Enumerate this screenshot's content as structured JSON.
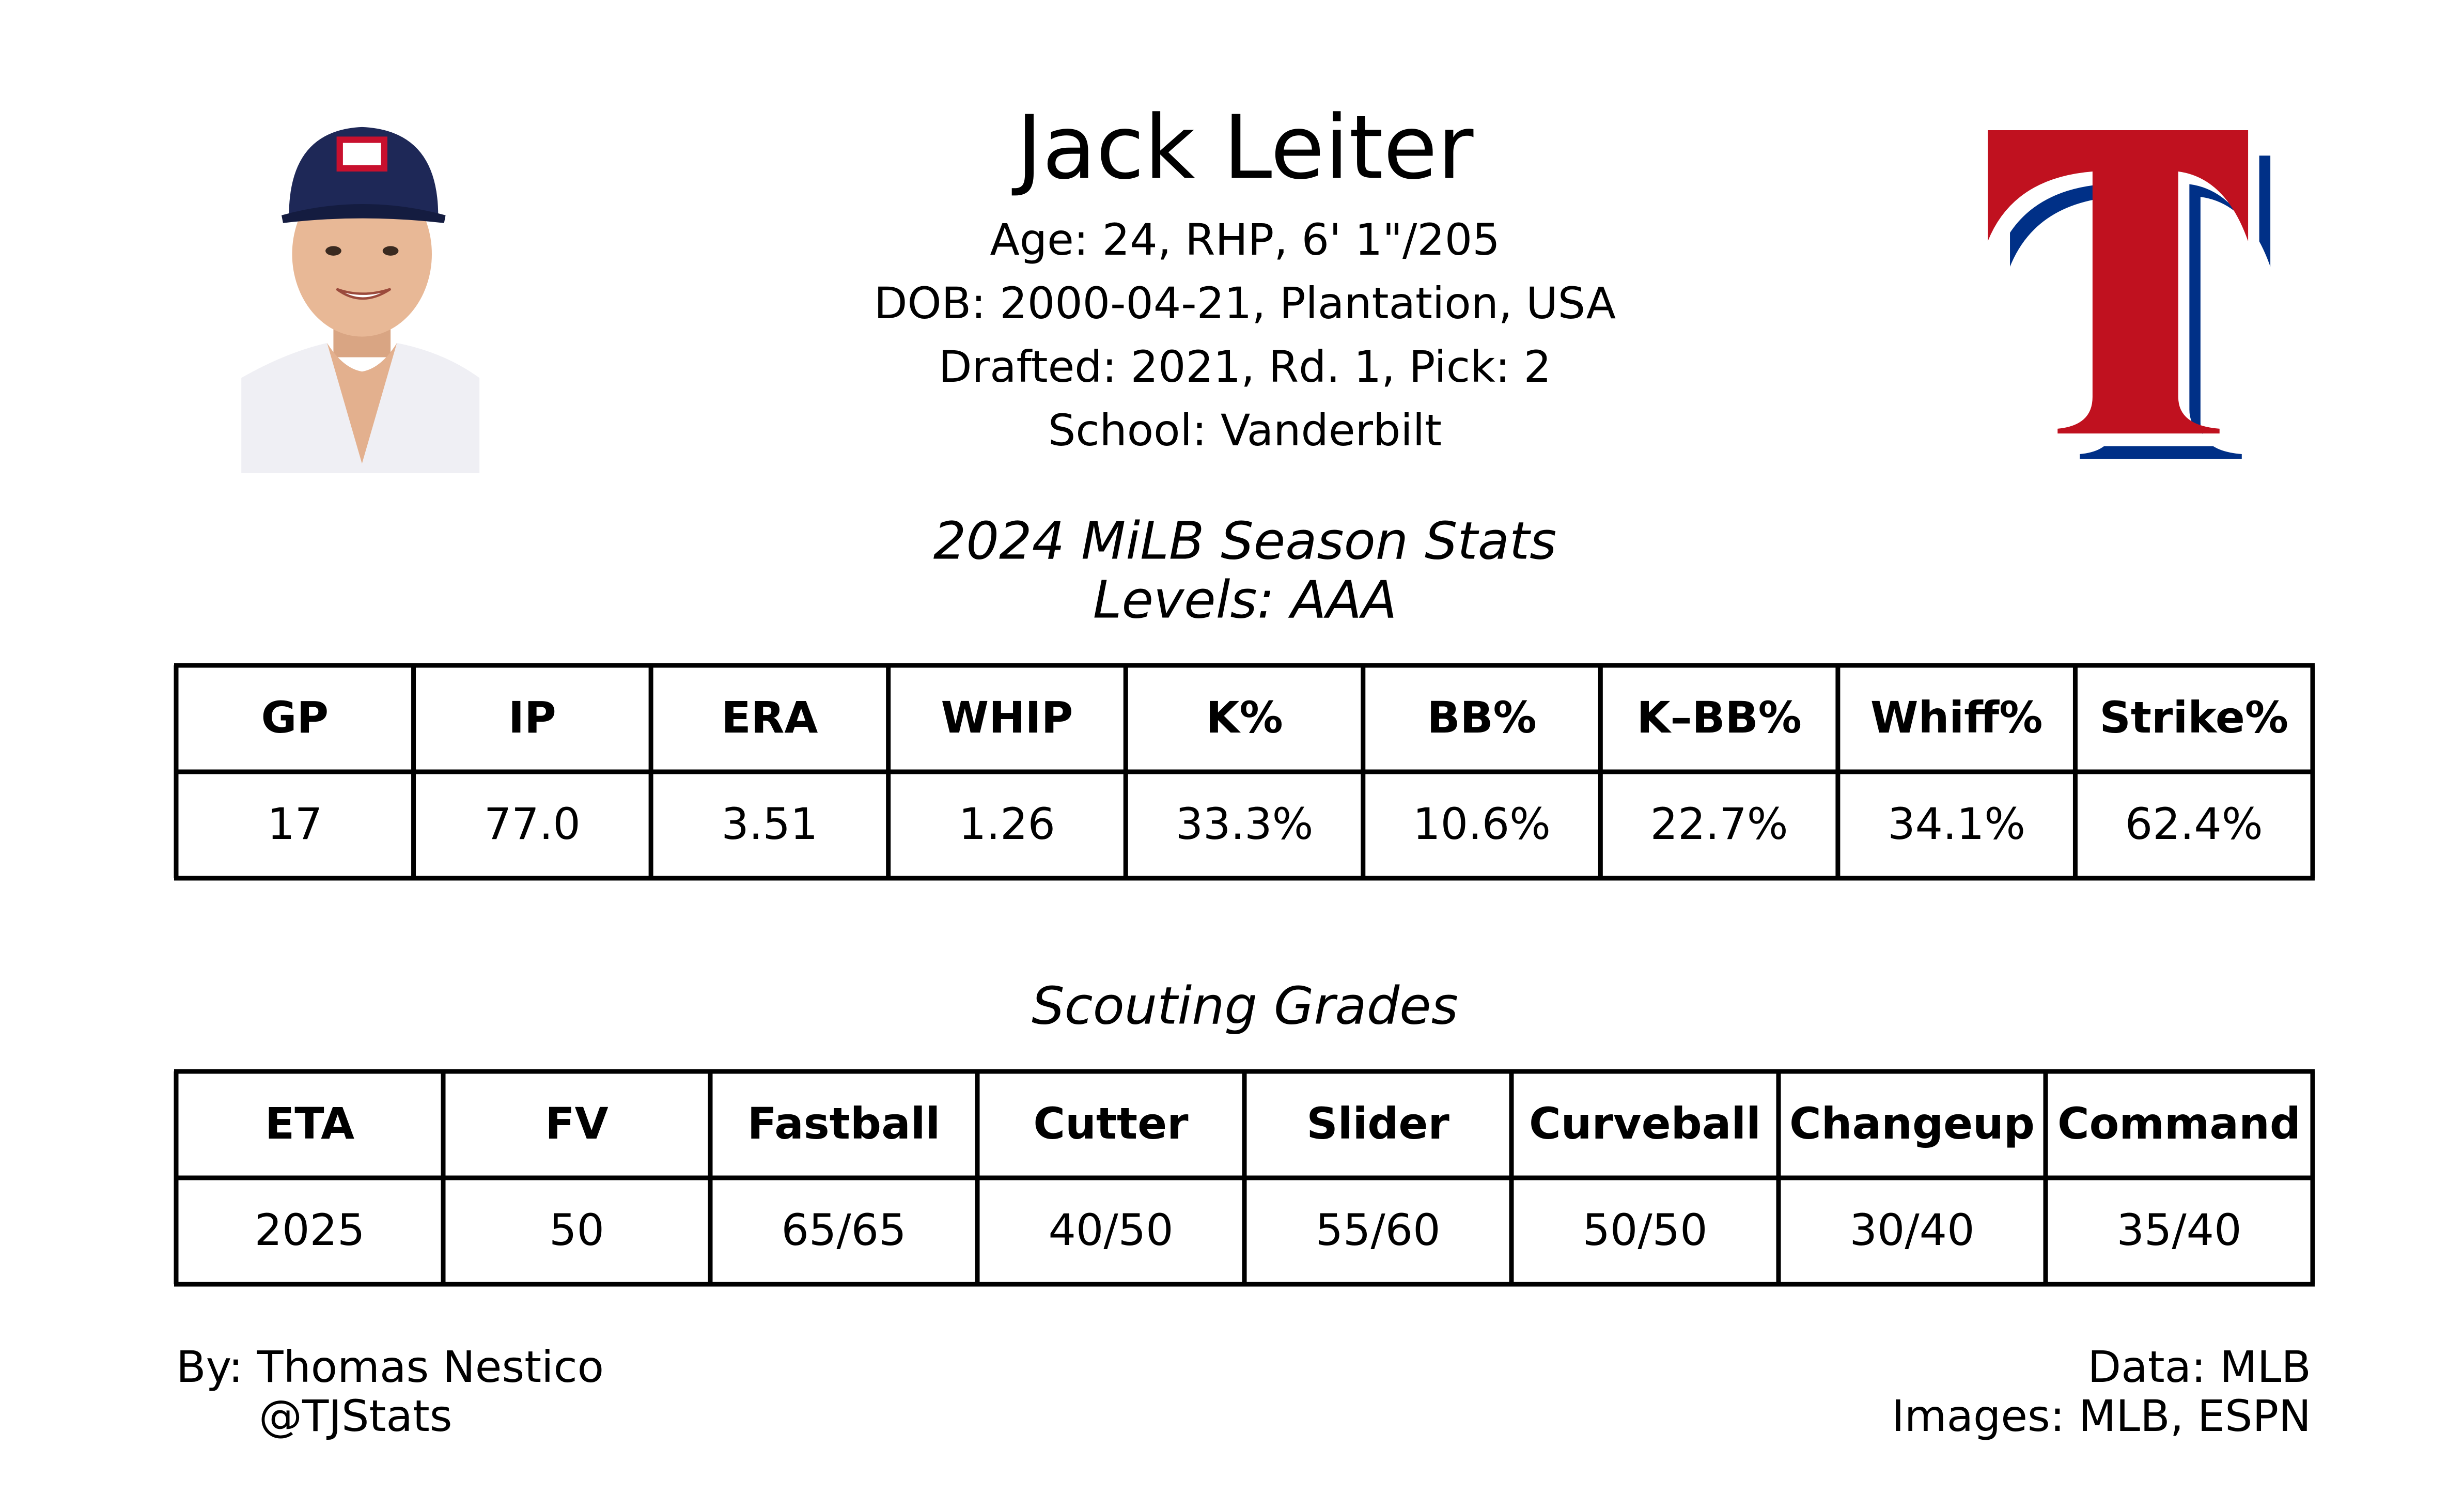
{
  "header": {
    "name": "Jack Leiter",
    "bio": [
      "Age: 24, RHP, 6' 1\"/205",
      "DOB: 2000-04-21, Plantation, USA",
      "Drafted: 2021, Rd. 1, Pick: 2",
      "School: Vanderbilt"
    ]
  },
  "season_stats": {
    "title": "2024 MiLB Season Stats",
    "levels": "Levels: AAA",
    "table": {
      "columns": [
        "GP",
        "IP",
        "ERA",
        "WHIP",
        "K%",
        "BB%",
        "K–BB%",
        "Whiff%",
        "Strike%"
      ],
      "rows": [
        [
          "17",
          "77.0",
          "3.51",
          "1.26",
          "33.3%",
          "10.6%",
          "22.7%",
          "34.1%",
          "62.4%"
        ]
      ]
    }
  },
  "scouting": {
    "title": "Scouting Grades",
    "table": {
      "columns": [
        "ETA",
        "FV",
        "Fastball",
        "Cutter",
        "Slider",
        "Curveball",
        "Changeup",
        "Command"
      ],
      "rows": [
        [
          "2025",
          "50",
          "65/65",
          "40/50",
          "55/60",
          "50/50",
          "30/40",
          "35/40"
        ]
      ]
    }
  },
  "footer": {
    "author": "By: Thomas Nestico",
    "handle": "@TJStats",
    "data_source": "Data: MLB",
    "images": "Images: MLB, ESPN"
  }
}
